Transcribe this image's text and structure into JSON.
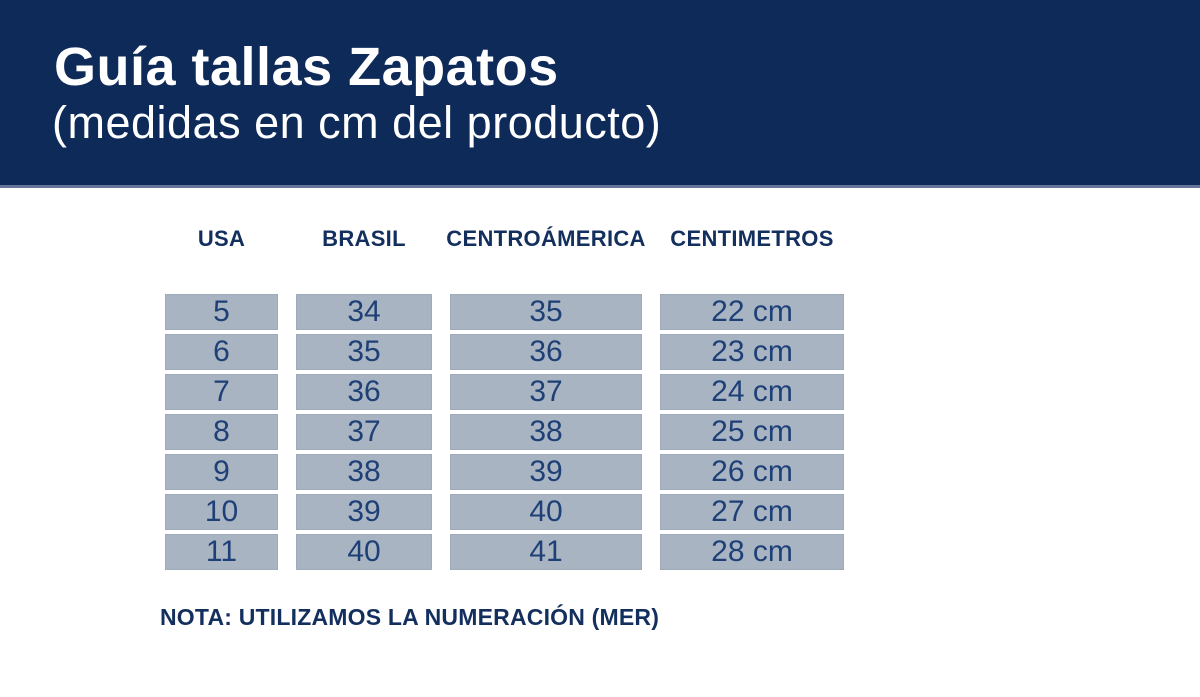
{
  "header": {
    "title": "Guía tallas Zapatos",
    "subtitle": "(medidas en cm del producto)"
  },
  "table": {
    "columns": [
      "USA",
      "BRASIL",
      "CENTROÁMERICA",
      "CENTIMETROS"
    ],
    "rows": [
      [
        "5",
        "34",
        "35",
        "22 cm"
      ],
      [
        "6",
        "35",
        "36",
        "23 cm"
      ],
      [
        "7",
        "36",
        "37",
        "24 cm"
      ],
      [
        "8",
        "37",
        "38",
        "25 cm"
      ],
      [
        "9",
        "38",
        "39",
        "26 cm"
      ],
      [
        "10",
        "39",
        "40",
        "27 cm"
      ],
      [
        "11",
        "40",
        "41",
        "28 cm"
      ]
    ]
  },
  "note": "NOTA: UTILIZAMOS LA NUMERACIÓN (MER)",
  "colors": {
    "band": "#0d2a58",
    "band-accent": "#64749b",
    "cell-bg": "#a9b4c2",
    "cell-text": "#1e4076",
    "text-navy": "#132f5e"
  }
}
